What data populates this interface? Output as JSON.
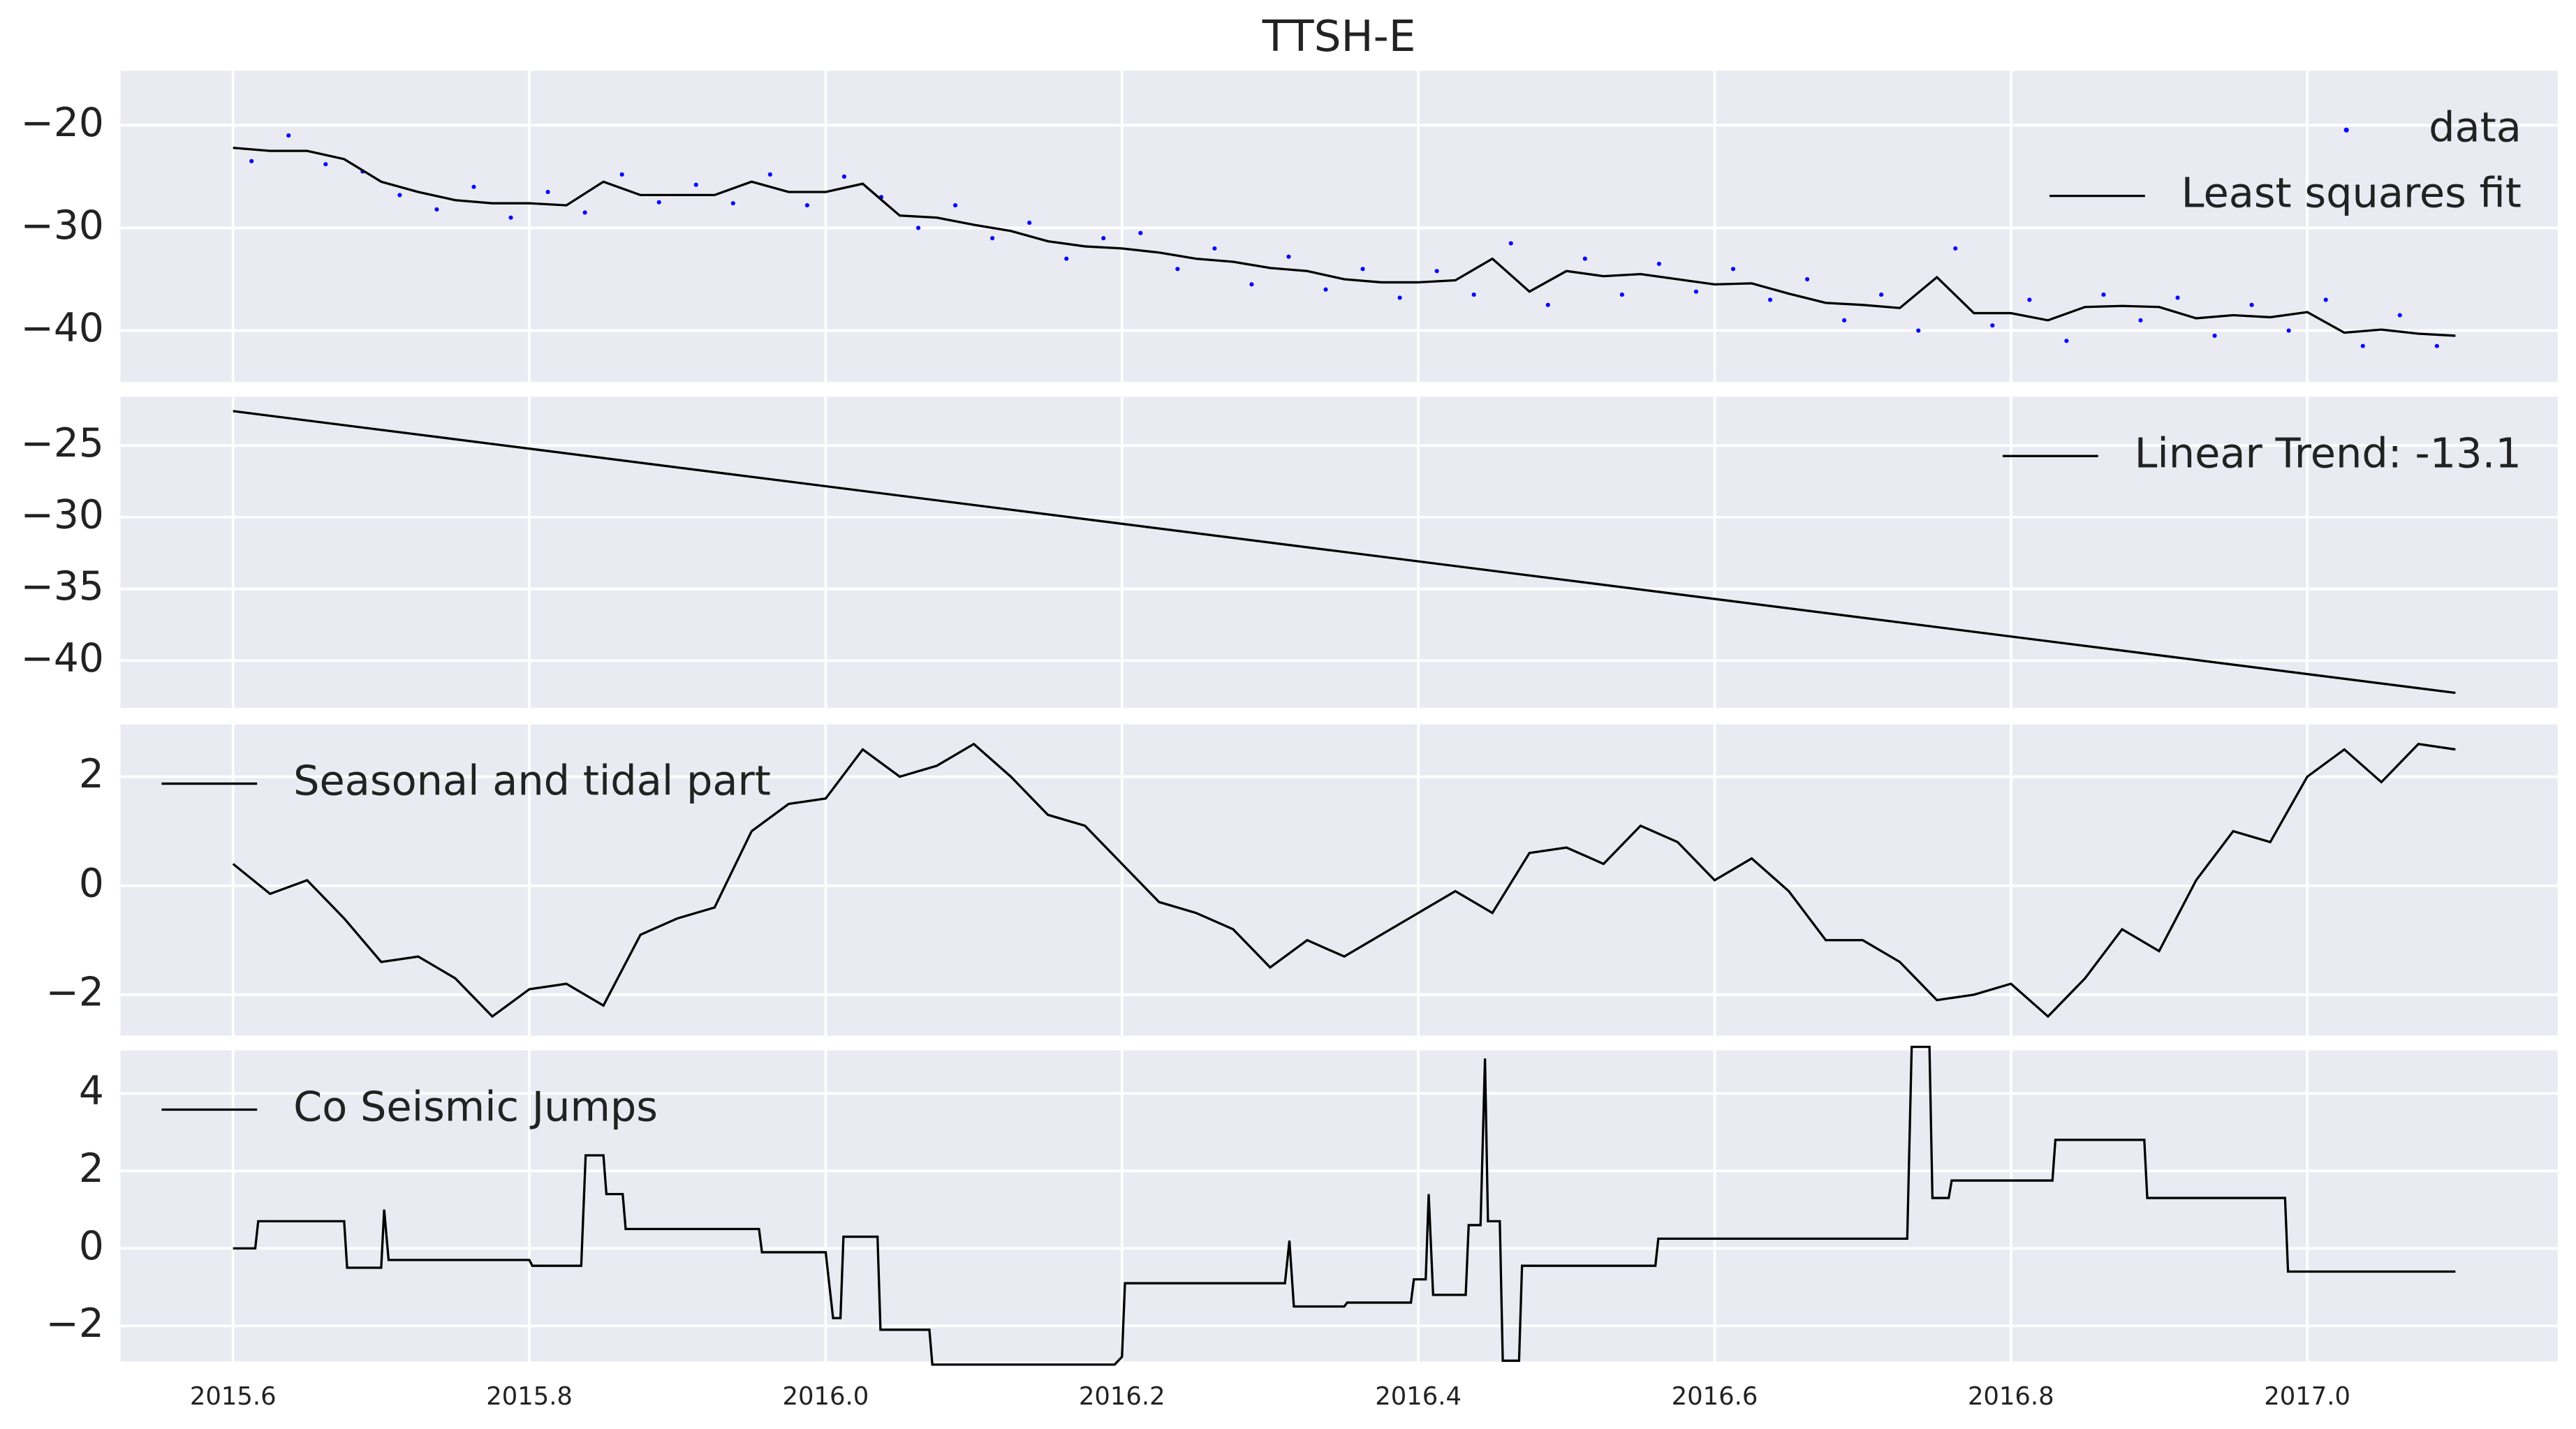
{
  "chart_data": [
    {
      "type": "line",
      "title": "TTSH-E",
      "legend": "upper right",
      "grid": true,
      "ylim": [
        -45,
        -14.7
      ],
      "yticks": [
        {
          "value": -40,
          "label": "−40"
        },
        {
          "value": -30,
          "label": "−30"
        },
        {
          "value": -20,
          "label": "−20"
        }
      ],
      "series": [
        {
          "name": "data",
          "style": "dots",
          "color": "#0000ff",
          "x": [
            2015.6125,
            2015.6375,
            2015.6625,
            2015.6875,
            2015.7125,
            2015.7375,
            2015.7625,
            2015.7875,
            2015.8125,
            2015.8375,
            2015.8625,
            2015.8875,
            2015.9125,
            2015.9375,
            2015.9625,
            2015.9875,
            2016.0125,
            2016.0375,
            2016.0625,
            2016.0875,
            2016.1125,
            2016.1375,
            2016.1625,
            2016.1875,
            2016.2125,
            2016.2375,
            2016.2625,
            2016.2875,
            2016.3125,
            2016.3375,
            2016.3625,
            2016.3875,
            2016.4125,
            2016.4375,
            2016.4625,
            2016.4875,
            2016.5125,
            2016.5375,
            2016.5625,
            2016.5875,
            2016.6125,
            2016.6375,
            2016.6625,
            2016.6875,
            2016.7125,
            2016.7375,
            2016.7625,
            2016.7875,
            2016.8125,
            2016.8375,
            2016.8625,
            2016.8875,
            2016.9125,
            2016.9375,
            2016.9625,
            2016.9875,
            2017.0125,
            2017.0375,
            2017.0625,
            2017.0875
          ],
          "values": [
            -23.5,
            -21.0,
            -23.8,
            -24.5,
            -26.8,
            -28.2,
            -26.0,
            -29.0,
            -26.5,
            -28.5,
            -24.8,
            -27.5,
            -25.8,
            -27.6,
            -24.8,
            -27.8,
            -25.0,
            -27.0,
            -30.0,
            -27.8,
            -31.0,
            -29.5,
            -33.0,
            -31.0,
            -30.5,
            -34.0,
            -32.0,
            -35.5,
            -32.8,
            -36.0,
            -34.0,
            -36.8,
            -34.2,
            -36.5,
            -31.5,
            -37.5,
            -33.0,
            -36.5,
            -33.5,
            -36.2,
            -34.0,
            -37.0,
            -35.0,
            -39.0,
            -36.5,
            -40.0,
            -32.0,
            -39.5,
            -37.0,
            -41.0,
            -36.5,
            -39.0,
            -36.8,
            -40.5,
            -37.5,
            -40.0,
            -37.0,
            -41.5,
            -38.5,
            -41.5
          ]
        },
        {
          "name": "Least squares fit",
          "style": "line",
          "color": "#000000",
          "x": [
            2015.6,
            2015.625,
            2015.65,
            2015.675,
            2015.7,
            2015.725,
            2015.75,
            2015.775,
            2015.8,
            2015.825,
            2015.85,
            2015.875,
            2015.9,
            2015.925,
            2015.95,
            2015.975,
            2016.0,
            2016.025,
            2016.05,
            2016.075,
            2016.1,
            2016.125,
            2016.15,
            2016.175,
            2016.2,
            2016.225,
            2016.25,
            2016.275,
            2016.3,
            2016.325,
            2016.35,
            2016.375,
            2016.4,
            2016.425,
            2016.45,
            2016.475,
            2016.5,
            2016.525,
            2016.55,
            2016.575,
            2016.6,
            2016.625,
            2016.65,
            2016.675,
            2016.7,
            2016.725,
            2016.75,
            2016.775,
            2016.8,
            2016.825,
            2016.85,
            2016.875,
            2016.9,
            2016.925,
            2016.95,
            2016.975,
            2017.0,
            2017.025,
            2017.05,
            2017.075,
            2017.1
          ],
          "values": [
            -22.2,
            -22.5,
            -22.5,
            -23.3,
            -25.5,
            -26.5,
            -27.3,
            -27.6,
            -27.6,
            -27.8,
            -25.5,
            -26.8,
            -26.8,
            -26.8,
            -25.5,
            -26.5,
            -26.5,
            -25.7,
            -28.8,
            -29.0,
            -29.7,
            -30.3,
            -31.3,
            -31.8,
            -32.0,
            -32.4,
            -33.0,
            -33.3,
            -33.9,
            -34.2,
            -35.0,
            -35.3,
            -35.3,
            -35.1,
            -33.0,
            -36.2,
            -34.2,
            -34.7,
            -34.5,
            -35.0,
            -35.5,
            -35.4,
            -36.4,
            -37.3,
            -37.5,
            -37.8,
            -34.8,
            -38.3,
            -38.3,
            -39.0,
            -37.7,
            -37.6,
            -37.7,
            -38.8,
            -38.5,
            -38.7,
            -38.2,
            -40.2,
            -39.9,
            -40.3,
            -40.5
          ]
        }
      ]
    },
    {
      "type": "line",
      "legend": "upper right",
      "grid": true,
      "ylim": [
        -43.3,
        -21.6
      ],
      "yticks": [
        {
          "value": -40,
          "label": "−40"
        },
        {
          "value": -35,
          "label": "−35"
        },
        {
          "value": -30,
          "label": "−30"
        },
        {
          "value": -25,
          "label": "−25"
        }
      ],
      "series": [
        {
          "name": "Linear Trend: -13.1",
          "style": "line",
          "color": "#000000",
          "x": [
            2015.6,
            2017.1
          ],
          "values": [
            -22.6,
            -42.25
          ]
        }
      ]
    },
    {
      "type": "line",
      "legend": "upper left",
      "grid": true,
      "ylim": [
        -2.75,
        2.96
      ],
      "yticks": [
        {
          "value": -2,
          "label": "−2"
        },
        0,
        2
      ],
      "series": [
        {
          "name": "Seasonal and tidal part",
          "style": "line",
          "color": "#000000",
          "x": [
            2015.6,
            2015.625,
            2015.65,
            2015.675,
            2015.7,
            2015.725,
            2015.75,
            2015.775,
            2015.8,
            2015.825,
            2015.85,
            2015.875,
            2015.9,
            2015.925,
            2015.95,
            2015.975,
            2016.0,
            2016.025,
            2016.05,
            2016.075,
            2016.1,
            2016.125,
            2016.15,
            2016.175,
            2016.2,
            2016.225,
            2016.25,
            2016.275,
            2016.3,
            2016.325,
            2016.35,
            2016.375,
            2016.4,
            2016.425,
            2016.45,
            2016.475,
            2016.5,
            2016.525,
            2016.55,
            2016.575,
            2016.6,
            2016.625,
            2016.65,
            2016.675,
            2016.7,
            2016.725,
            2016.75,
            2016.775,
            2016.8,
            2016.825,
            2016.85,
            2016.875,
            2016.9,
            2016.925,
            2016.95,
            2016.975,
            2017.0,
            2017.025,
            2017.05,
            2017.075,
            2017.1
          ],
          "values": [
            0.4,
            -0.15,
            0.1,
            -0.6,
            -1.4,
            -1.3,
            -1.7,
            -2.4,
            -1.9,
            -1.8,
            -2.2,
            -0.9,
            -0.6,
            -0.4,
            1.0,
            1.5,
            1.6,
            2.5,
            2.0,
            2.2,
            2.6,
            2.0,
            1.3,
            1.1,
            0.4,
            -0.3,
            -0.5,
            -0.8,
            -1.5,
            -1.0,
            -1.3,
            -0.9,
            -0.5,
            -0.1,
            -0.5,
            0.6,
            0.7,
            0.4,
            1.1,
            0.8,
            0.1,
            0.5,
            -0.1,
            -1.0,
            -1.0,
            -1.4,
            -2.1,
            -2.0,
            -1.8,
            -2.4,
            -1.7,
            -0.8,
            -1.2,
            0.1,
            1.0,
            0.8,
            2.0,
            2.5,
            1.9,
            2.6,
            2.5
          ]
        }
      ]
    },
    {
      "type": "line",
      "legend": "upper left",
      "grid": true,
      "ylim": [
        -2.92,
        5.11
      ],
      "yticks": [
        {
          "value": -2,
          "label": "−2"
        },
        0,
        2,
        4
      ],
      "xlim": [
        2015.524,
        2017.169
      ],
      "xticks": [
        2015.6,
        2015.8,
        {
          "value": 2016,
          "label": "2016.0"
        },
        2016.2,
        2016.4,
        2016.6,
        2016.8,
        {
          "value": 2017,
          "label": "2017.0"
        }
      ],
      "series": [
        {
          "name": "Co Seismic Jumps",
          "style": "line",
          "color": "#000000",
          "x": [
            2015.6,
            2015.615,
            2015.617,
            2015.675,
            2015.677,
            2015.7,
            2015.702,
            2015.705,
            2015.8,
            2015.802,
            2015.835,
            2015.838,
            2015.85,
            2015.852,
            2015.863,
            2015.865,
            2015.955,
            2015.957,
            2016.0,
            2016.005,
            2016.01,
            2016.012,
            2016.035,
            2016.037,
            2016.07,
            2016.072,
            2016.195,
            2016.2,
            2016.202,
            2016.31,
            2016.313,
            2016.316,
            2016.35,
            2016.352,
            2016.395,
            2016.397,
            2016.405,
            2016.407,
            2016.41,
            2016.432,
            2016.434,
            2016.442,
            2016.445,
            2016.447,
            2016.455,
            2016.457,
            2016.468,
            2016.47,
            2016.56,
            2016.562,
            2016.73,
            2016.733,
            2016.745,
            2016.747,
            2016.758,
            2016.76,
            2016.828,
            2016.83,
            2016.89,
            2016.892,
            2016.985,
            2016.987,
            2017.1
          ],
          "values": [
            0,
            0,
            0.7,
            0.7,
            -0.5,
            -0.5,
            1.0,
            -0.3,
            -0.3,
            -0.45,
            -0.45,
            2.4,
            2.4,
            1.4,
            1.4,
            0.5,
            0.5,
            -0.1,
            -0.1,
            -1.8,
            -1.8,
            0.3,
            0.3,
            -2.1,
            -2.1,
            -3.0,
            -3.0,
            -2.8,
            -0.9,
            -0.9,
            0.2,
            -1.5,
            -1.5,
            -1.4,
            -1.4,
            -0.8,
            -0.8,
            1.4,
            -1.2,
            -1.2,
            0.6,
            0.6,
            4.9,
            0.7,
            0.7,
            -2.9,
            -2.9,
            -0.45,
            -0.45,
            0.25,
            0.25,
            5.2,
            5.2,
            1.3,
            1.3,
            1.75,
            1.75,
            2.8,
            2.8,
            1.3,
            1.3,
            -0.6,
            -0.6
          ]
        }
      ]
    }
  ]
}
